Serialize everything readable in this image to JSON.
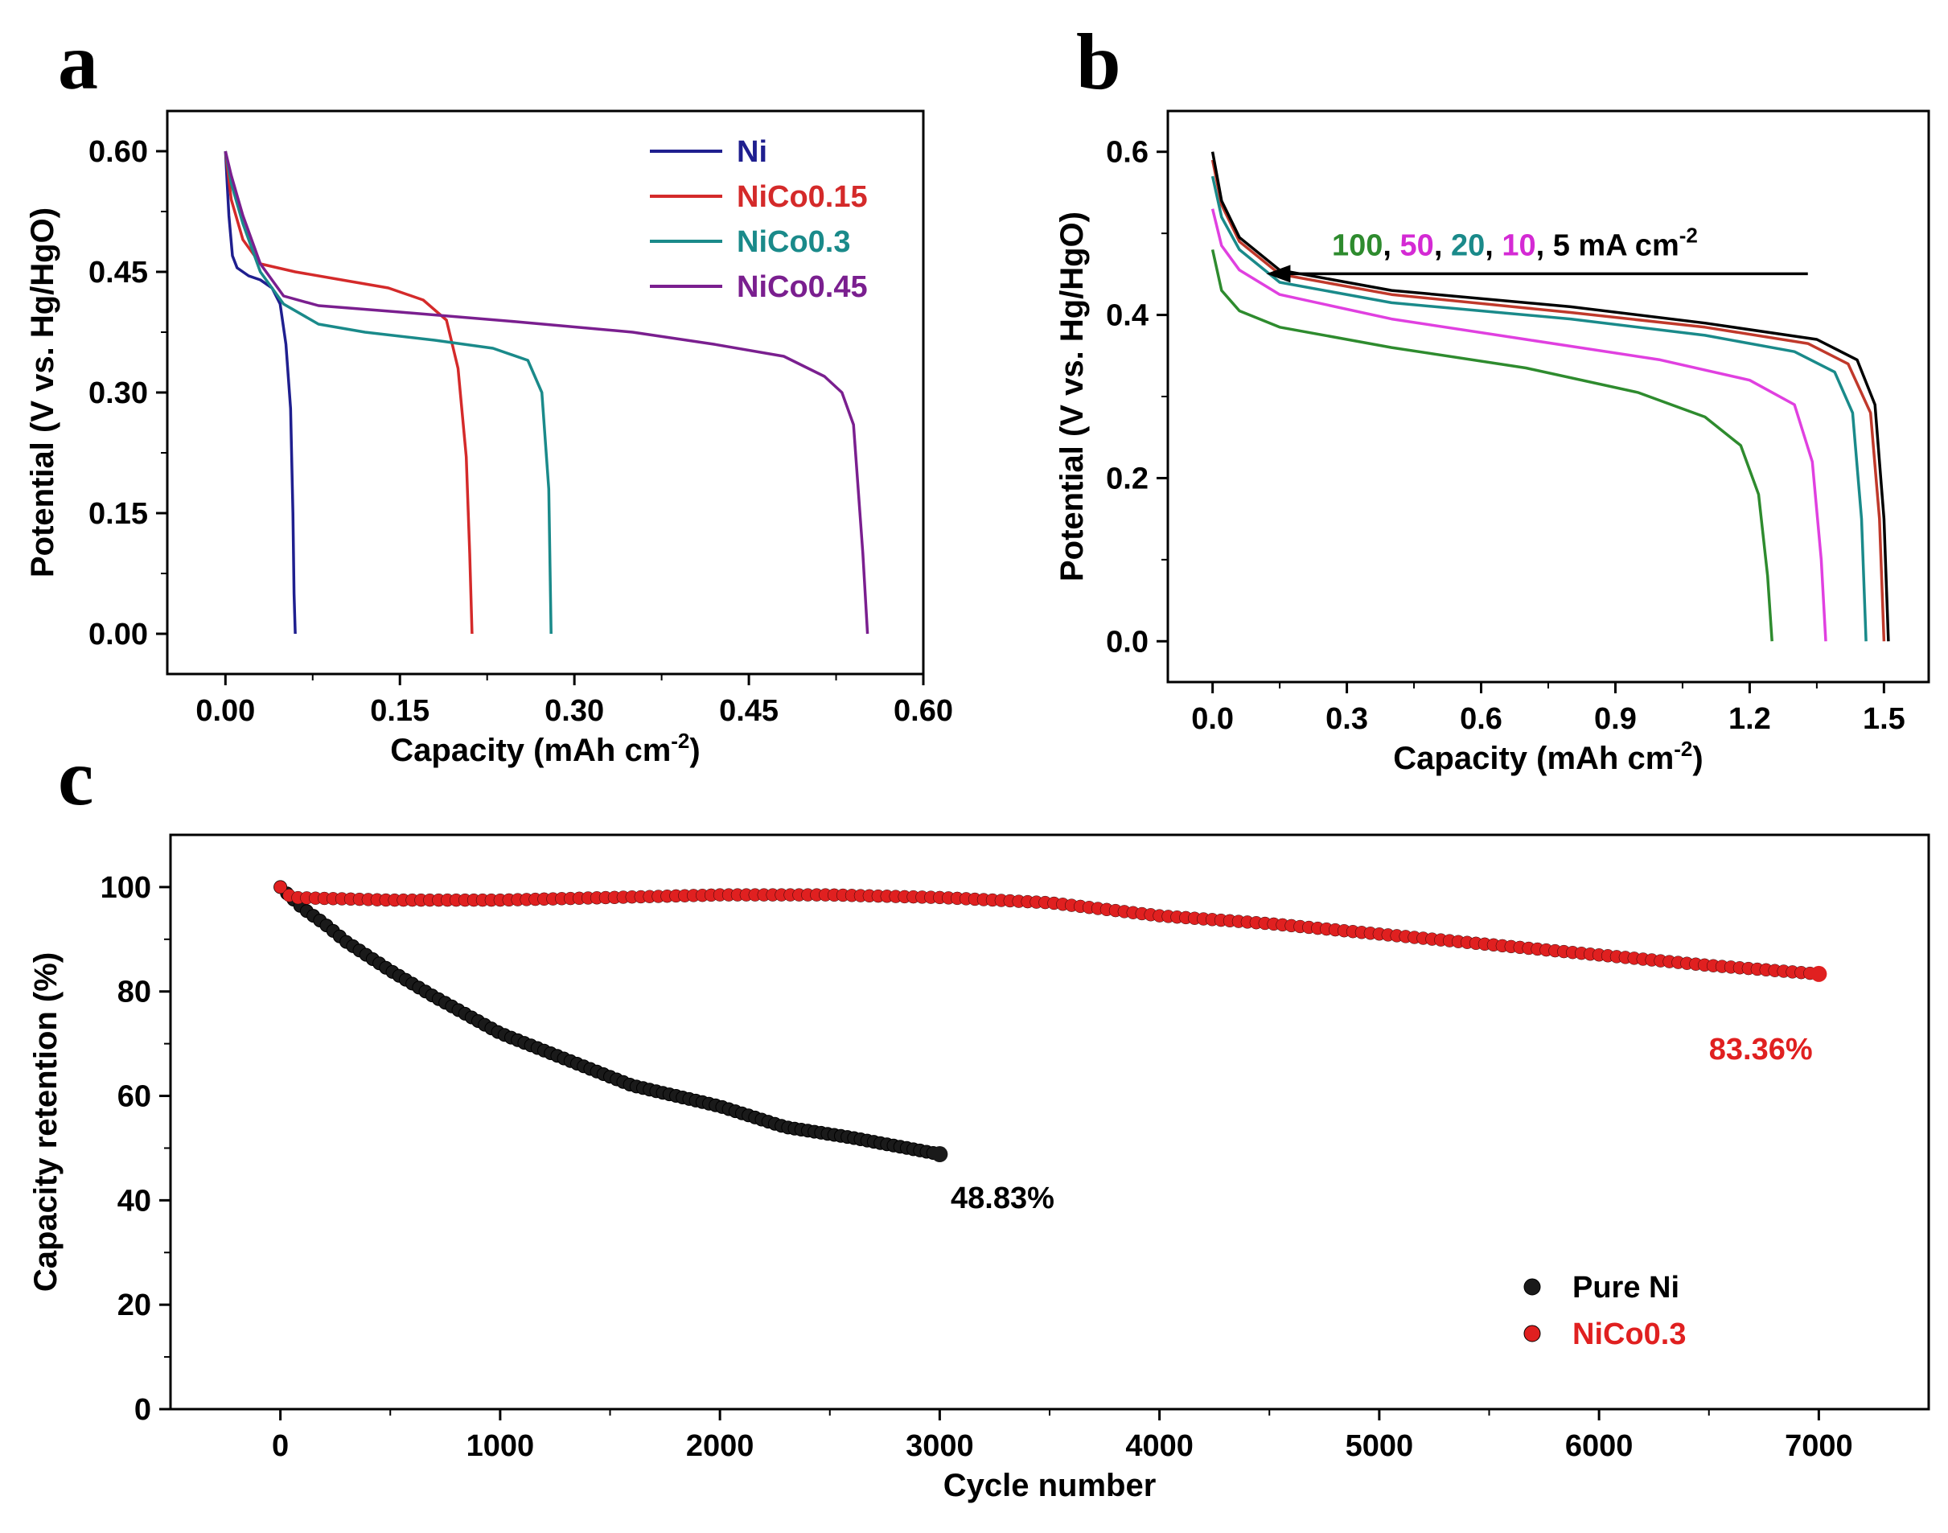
{
  "panels": {
    "a": "a",
    "b": "b",
    "c": "c"
  },
  "chart_data": [
    {
      "id": "a",
      "type": "line",
      "title": "",
      "xlabel": "Capacity (mAh cm",
      "xlabel_sup": "-2",
      "xlabel_end": ")",
      "ylabel": "Potential (V vs. Hg/HgO)",
      "xlim": [
        -0.05,
        0.6
      ],
      "ylim": [
        -0.05,
        0.65
      ],
      "xticks": [
        0.0,
        0.15,
        0.3,
        0.45,
        0.6
      ],
      "xtick_labels": [
        "0.00",
        "0.15",
        "0.30",
        "0.45",
        "0.60"
      ],
      "yticks": [
        0.0,
        0.15,
        0.3,
        0.45,
        0.6
      ],
      "ytick_labels": [
        "0.00",
        "0.15",
        "0.30",
        "0.45",
        "0.60"
      ],
      "legend_position": "top-right",
      "series": [
        {
          "name": "Ni",
          "color": "#1f1f8f",
          "points": [
            [
              0,
              0.6
            ],
            [
              0.003,
              0.52
            ],
            [
              0.006,
              0.47
            ],
            [
              0.01,
              0.455
            ],
            [
              0.02,
              0.445
            ],
            [
              0.03,
              0.44
            ],
            [
              0.04,
              0.43
            ],
            [
              0.047,
              0.41
            ],
            [
              0.052,
              0.36
            ],
            [
              0.056,
              0.28
            ],
            [
              0.058,
              0.15
            ],
            [
              0.059,
              0.05
            ],
            [
              0.06,
              0.0
            ]
          ]
        },
        {
          "name": "NiCo0.15",
          "color": "#d42a2a",
          "points": [
            [
              0,
              0.6
            ],
            [
              0.005,
              0.54
            ],
            [
              0.015,
              0.49
            ],
            [
              0.03,
              0.46
            ],
            [
              0.06,
              0.45
            ],
            [
              0.1,
              0.44
            ],
            [
              0.14,
              0.43
            ],
            [
              0.17,
              0.415
            ],
            [
              0.19,
              0.39
            ],
            [
              0.2,
              0.33
            ],
            [
              0.207,
              0.22
            ],
            [
              0.21,
              0.1
            ],
            [
              0.212,
              0.0
            ]
          ]
        },
        {
          "name": "NiCo0.3",
          "color": "#1a8a8a",
          "points": [
            [
              0,
              0.6
            ],
            [
              0.005,
              0.56
            ],
            [
              0.015,
              0.51
            ],
            [
              0.03,
              0.45
            ],
            [
              0.05,
              0.41
            ],
            [
              0.08,
              0.385
            ],
            [
              0.12,
              0.375
            ],
            [
              0.18,
              0.365
            ],
            [
              0.23,
              0.355
            ],
            [
              0.26,
              0.34
            ],
            [
              0.272,
              0.3
            ],
            [
              0.278,
              0.18
            ],
            [
              0.28,
              0.0
            ]
          ]
        },
        {
          "name": "NiCo0.45",
          "color": "#7a1f8f",
          "points": [
            [
              0,
              0.6
            ],
            [
              0.005,
              0.57
            ],
            [
              0.015,
              0.52
            ],
            [
              0.03,
              0.46
            ],
            [
              0.05,
              0.42
            ],
            [
              0.08,
              0.408
            ],
            [
              0.15,
              0.4
            ],
            [
              0.25,
              0.388
            ],
            [
              0.35,
              0.375
            ],
            [
              0.42,
              0.36
            ],
            [
              0.48,
              0.345
            ],
            [
              0.515,
              0.32
            ],
            [
              0.53,
              0.3
            ],
            [
              0.54,
              0.26
            ],
            [
              0.548,
              0.1
            ],
            [
              0.552,
              0.0
            ]
          ]
        }
      ]
    },
    {
      "id": "b",
      "type": "line",
      "title": "",
      "xlabel": "Capacity (mAh cm",
      "xlabel_sup": "-2",
      "xlabel_end": ")",
      "ylabel": "Potential (V vs. Hg/HgO)",
      "xlim": [
        -0.1,
        1.6
      ],
      "ylim": [
        -0.05,
        0.65
      ],
      "xticks": [
        0.0,
        0.3,
        0.6,
        0.9,
        1.2,
        1.5
      ],
      "xtick_labels": [
        "0.0",
        "0.3",
        "0.6",
        "0.9",
        "1.2",
        "1.5"
      ],
      "yticks": [
        0.0,
        0.2,
        0.4,
        0.6
      ],
      "ytick_labels": [
        "0.0",
        "0.2",
        "0.4",
        "0.6"
      ],
      "annotation": {
        "parts": [
          {
            "text": "100",
            "color": "#2e8b2e"
          },
          {
            "text": ", ",
            "color": "#000000"
          },
          {
            "text": "50",
            "color": "#d42ad4"
          },
          {
            "text": ", ",
            "color": "#000000"
          },
          {
            "text": "20",
            "color": "#1a8a8a"
          },
          {
            "text": ", ",
            "color": "#000000"
          },
          {
            "text": "10",
            "color": "#d42ad4"
          },
          {
            "text": ", 5 mA cm",
            "color": "#000000"
          }
        ],
        "sup": "-2",
        "arrow_from_x": 1.33,
        "arrow_to_x": 0.12,
        "arrow_y": 0.48
      },
      "series": [
        {
          "name": "100 mA cm-2",
          "color": "#2e8b2e",
          "points": [
            [
              0,
              0.48
            ],
            [
              0.02,
              0.43
            ],
            [
              0.06,
              0.405
            ],
            [
              0.15,
              0.385
            ],
            [
              0.4,
              0.36
            ],
            [
              0.7,
              0.335
            ],
            [
              0.95,
              0.305
            ],
            [
              1.1,
              0.275
            ],
            [
              1.18,
              0.24
            ],
            [
              1.22,
              0.18
            ],
            [
              1.24,
              0.08
            ],
            [
              1.25,
              0.0
            ]
          ]
        },
        {
          "name": "50 mA cm-2",
          "color": "#e040e0",
          "points": [
            [
              0,
              0.53
            ],
            [
              0.02,
              0.485
            ],
            [
              0.06,
              0.455
            ],
            [
              0.15,
              0.425
            ],
            [
              0.4,
              0.395
            ],
            [
              0.7,
              0.37
            ],
            [
              1.0,
              0.345
            ],
            [
              1.2,
              0.32
            ],
            [
              1.3,
              0.29
            ],
            [
              1.34,
              0.22
            ],
            [
              1.36,
              0.1
            ],
            [
              1.37,
              0.0
            ]
          ]
        },
        {
          "name": "20 mA cm-2",
          "color": "#1a8a8a",
          "points": [
            [
              0,
              0.57
            ],
            [
              0.02,
              0.52
            ],
            [
              0.06,
              0.48
            ],
            [
              0.15,
              0.44
            ],
            [
              0.4,
              0.415
            ],
            [
              0.8,
              0.395
            ],
            [
              1.1,
              0.375
            ],
            [
              1.3,
              0.355
            ],
            [
              1.39,
              0.33
            ],
            [
              1.43,
              0.28
            ],
            [
              1.45,
              0.15
            ],
            [
              1.46,
              0.0
            ]
          ]
        },
        {
          "name": "10 mA cm-2",
          "color": "#c0392b",
          "points": [
            [
              0,
              0.59
            ],
            [
              0.02,
              0.535
            ],
            [
              0.06,
              0.49
            ],
            [
              0.15,
              0.45
            ],
            [
              0.4,
              0.425
            ],
            [
              0.8,
              0.403
            ],
            [
              1.1,
              0.385
            ],
            [
              1.33,
              0.365
            ],
            [
              1.42,
              0.34
            ],
            [
              1.47,
              0.28
            ],
            [
              1.49,
              0.15
            ],
            [
              1.5,
              0.0
            ]
          ]
        },
        {
          "name": "5 mA cm-2",
          "color": "#000000",
          "points": [
            [
              0,
              0.6
            ],
            [
              0.02,
              0.54
            ],
            [
              0.06,
              0.495
            ],
            [
              0.15,
              0.455
            ],
            [
              0.4,
              0.43
            ],
            [
              0.8,
              0.41
            ],
            [
              1.1,
              0.39
            ],
            [
              1.35,
              0.37
            ],
            [
              1.44,
              0.345
            ],
            [
              1.48,
              0.29
            ],
            [
              1.5,
              0.15
            ],
            [
              1.51,
              0.0
            ]
          ]
        }
      ]
    },
    {
      "id": "c",
      "type": "scatter",
      "title": "",
      "xlabel": "Cycle number",
      "ylabel": "Capacity retention (%)",
      "xlim": [
        -500,
        7500
      ],
      "ylim": [
        0,
        110
      ],
      "xticks": [
        0,
        1000,
        2000,
        3000,
        4000,
        5000,
        6000,
        7000
      ],
      "xtick_labels": [
        "0",
        "1000",
        "2000",
        "3000",
        "4000",
        "5000",
        "6000",
        "7000"
      ],
      "yticks": [
        0,
        20,
        40,
        60,
        80,
        100
      ],
      "ytick_labels": [
        "0",
        "20",
        "40",
        "60",
        "80",
        "100"
      ],
      "legend_position": "bottom-right",
      "series": [
        {
          "name": "Pure Ni",
          "color": "#1a1a1a",
          "points": [
            [
              0,
              100
            ],
            [
              100,
              96
            ],
            [
              200,
              93
            ],
            [
              300,
              89.5
            ],
            [
              500,
              84
            ],
            [
              700,
              79
            ],
            [
              1000,
              72
            ],
            [
              1300,
              67
            ],
            [
              1600,
              62
            ],
            [
              2000,
              58
            ],
            [
              2300,
              54
            ],
            [
              2600,
              52
            ],
            [
              3000,
              48.83
            ]
          ]
        },
        {
          "name": "NiCo0.3",
          "color": "#e02020",
          "points": [
            [
              0,
              100
            ],
            [
              50,
              98
            ],
            [
              500,
              97.5
            ],
            [
              1000,
              97.5
            ],
            [
              1500,
              98
            ],
            [
              2000,
              98.5
            ],
            [
              2500,
              98.5
            ],
            [
              3000,
              98
            ],
            [
              3500,
              97
            ],
            [
              4000,
              94.5
            ],
            [
              4500,
              93
            ],
            [
              5000,
              91
            ],
            [
              5500,
              89
            ],
            [
              6000,
              87
            ],
            [
              6500,
              85
            ],
            [
              7000,
              83.36
            ]
          ]
        }
      ],
      "annotations": [
        {
          "text": "48.83%",
          "x": 3050,
          "y": 38.5,
          "color": "#000000"
        },
        {
          "text": "83.36%",
          "x": 6500,
          "y": 67,
          "color": "#e02020"
        }
      ]
    }
  ]
}
